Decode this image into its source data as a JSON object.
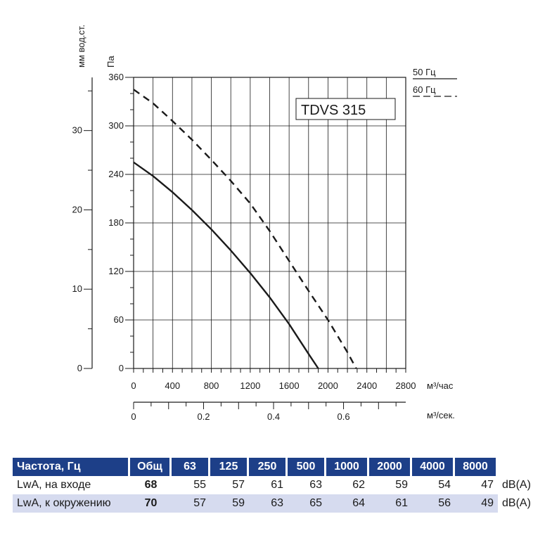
{
  "chart_data": {
    "type": "line",
    "model_label": "TDVS 315",
    "y_primary": {
      "label": "Па",
      "ylim": [
        0,
        360
      ],
      "ticks": [
        0,
        60,
        120,
        180,
        240,
        300,
        360
      ]
    },
    "y_secondary": {
      "label": "мм вод.ст.",
      "ylim": [
        0,
        36.7
      ],
      "ticks": [
        0,
        10,
        20,
        30
      ]
    },
    "x_primary": {
      "label": "м³/час",
      "xlim": [
        0,
        2800
      ],
      "ticks": [
        0,
        400,
        800,
        1200,
        1600,
        2000,
        2400,
        2800
      ]
    },
    "x_secondary": {
      "label": "м³/сек.",
      "ticks": [
        "0",
        "0.2",
        "0.4",
        "0.6"
      ],
      "tick_values": [
        0,
        0.2,
        0.4,
        0.6
      ]
    },
    "grid": true,
    "series": [
      {
        "name": "50 Гц",
        "style": "solid",
        "x": [
          0,
          200,
          400,
          600,
          800,
          1000,
          1200,
          1400,
          1600,
          1800,
          1900
        ],
        "y": [
          255,
          238,
          218,
          196,
          172,
          146,
          118,
          88,
          55,
          18,
          0
        ]
      },
      {
        "name": "60 Гц",
        "style": "dashed",
        "x": [
          0,
          200,
          400,
          600,
          800,
          1000,
          1200,
          1400,
          1600,
          1800,
          2000,
          2200,
          2290
        ],
        "y": [
          345,
          328,
          306,
          283,
          258,
          232,
          204,
          170,
          133,
          96,
          60,
          20,
          0
        ]
      }
    ]
  },
  "table": {
    "headers": [
      "Частота, Гц",
      "Общ",
      "63",
      "125",
      "250",
      "500",
      "1000",
      "2000",
      "4000",
      "8000"
    ],
    "rows": [
      {
        "label": "LwA, на входе",
        "total": "68",
        "values": [
          "55",
          "57",
          "61",
          "63",
          "62",
          "59",
          "54",
          "47"
        ],
        "unit": "dB(A)"
      },
      {
        "label": "LwA, к окружению",
        "total": "70",
        "values": [
          "57",
          "59",
          "63",
          "65",
          "64",
          "61",
          "56",
          "49"
        ],
        "unit": "dB(A)"
      }
    ]
  }
}
